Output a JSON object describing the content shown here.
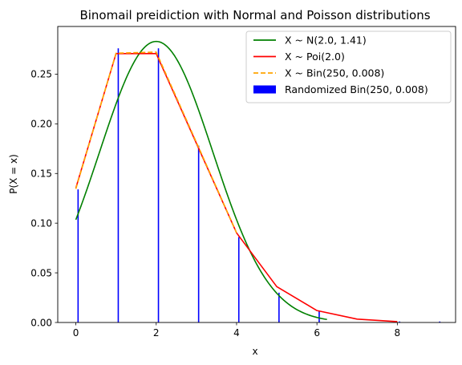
{
  "chart_data": {
    "type": "line",
    "title": "Binomail preidiction with Normal and Poisson distributions",
    "xlabel": "x",
    "ylabel": "P(X = x)",
    "xlim": [
      -0.45,
      9.45
    ],
    "ylim": [
      0.0,
      0.298
    ],
    "xticks": [
      0,
      2,
      4,
      6,
      8
    ],
    "yticks": [
      0.0,
      0.05,
      0.1,
      0.15,
      0.2,
      0.25
    ],
    "ytick_labels": [
      "0.00",
      "0.05",
      "0.10",
      "0.15",
      "0.20",
      "0.25"
    ],
    "legend_position": "upper right",
    "series": [
      {
        "name": "X ~ N(2.0, 1.41)",
        "kind": "normal-curve",
        "mu": 2.0,
        "sigma": 1.41,
        "x_range": [
          0.0,
          6.25
        ],
        "color": "#008000"
      },
      {
        "name": "X ~ Poi(2.0)",
        "kind": "line",
        "x": [
          0,
          1,
          2,
          3,
          4,
          5,
          6,
          7,
          8
        ],
        "values": [
          0.1353,
          0.2707,
          0.2707,
          0.1804,
          0.0902,
          0.0361,
          0.012,
          0.0034,
          0.0009
        ],
        "color": "#ff0000"
      },
      {
        "name": "X ~ Bin(250, 0.008)",
        "kind": "dashed-line",
        "x": [
          0,
          1,
          2,
          3,
          4
        ],
        "values": [
          0.1345,
          0.2711,
          0.2722,
          0.1814,
          0.0903
        ],
        "color": "#ffa500"
      },
      {
        "name": "Randomized Bin(250, 0.008)",
        "kind": "bar",
        "x": [
          0,
          1,
          2,
          3,
          4,
          5,
          6,
          8,
          9
        ],
        "values": [
          0.134,
          0.276,
          0.276,
          0.178,
          0.086,
          0.03,
          0.012,
          0.001,
          0.001
        ],
        "color": "#0000ff"
      }
    ]
  }
}
